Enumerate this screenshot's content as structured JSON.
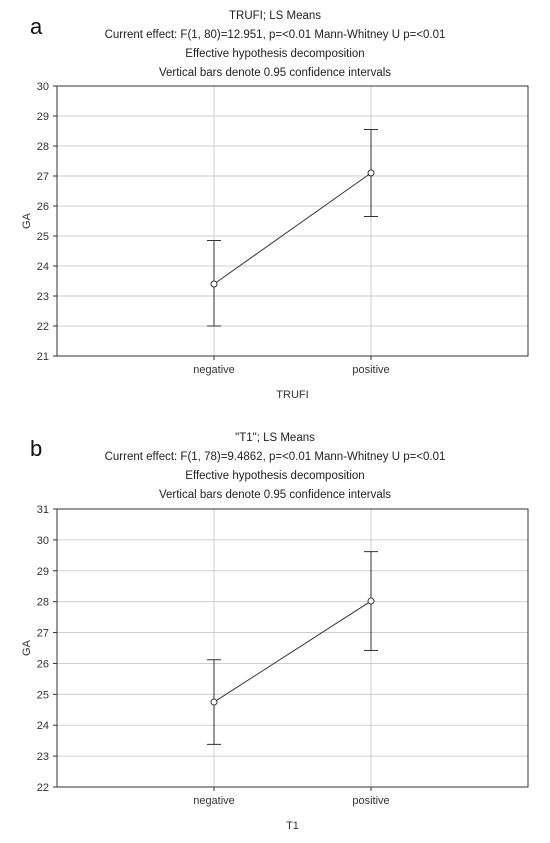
{
  "panels": [
    {
      "letter": "a",
      "titles": [
        "TRUFI; LS Means",
        "Current effect: F(1, 80)=12.951, p=<0.01 Mann-Whitney U p=<0.01",
        "Effective hypothesis decomposition",
        "Vertical bars denote 0.95 confidence intervals"
      ]
    },
    {
      "letter": "b",
      "titles": [
        "\"T1\"; LS Means",
        "Current effect: F(1, 78)=9.4862, p=<0.01 Mann-Whitney U p=<0.01",
        "Effective hypothesis decomposition",
        "Vertical bars denote 0.95 confidence intervals"
      ]
    }
  ],
  "chart_data": [
    {
      "type": "line",
      "title": "TRUFI; LS Means",
      "xlabel": "TRUFI",
      "ylabel": "GA",
      "categories": [
        "negative",
        "positive"
      ],
      "series": [
        {
          "values": [
            23.4,
            27.1
          ],
          "ci_low": [
            22.0,
            25.65
          ],
          "ci_high": [
            24.85,
            28.55
          ]
        }
      ],
      "ylim": [
        21,
        30
      ],
      "yticks": [
        21,
        22,
        23,
        24,
        25,
        26,
        27,
        28,
        29,
        30
      ],
      "grid": true
    },
    {
      "type": "line",
      "title": "\"T1\"; LS Means",
      "xlabel": "T1",
      "ylabel": "GA",
      "categories": [
        "negative",
        "positive"
      ],
      "series": [
        {
          "values": [
            24.75,
            28.02
          ],
          "ci_low": [
            23.38,
            26.42
          ],
          "ci_high": [
            26.12,
            29.62
          ]
        }
      ],
      "ylim": [
        22,
        31
      ],
      "yticks": [
        22,
        23,
        24,
        25,
        26,
        27,
        28,
        29,
        30,
        31
      ],
      "grid": true
    }
  ],
  "colors": {
    "line": "#333333",
    "grid": "#cfcfcf",
    "axis": "#333333",
    "marker_fill": "#ffffff"
  }
}
